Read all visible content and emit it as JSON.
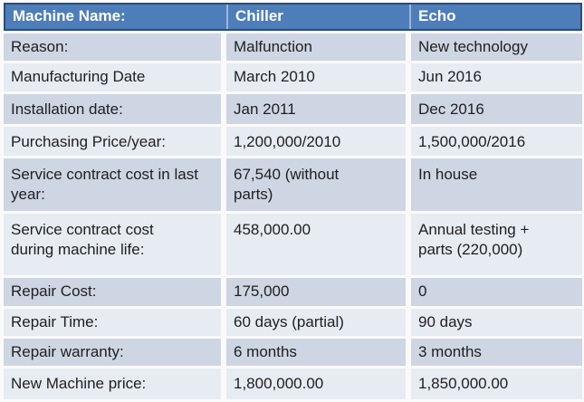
{
  "table": {
    "header": {
      "machine_label": "Machine Name:",
      "chiller": "Chiller",
      "echo": "Echo"
    },
    "rows": [
      {
        "label": "Reason:",
        "chiller": "Malfunction",
        "echo": "New technology"
      },
      {
        "label": "Manufacturing Date",
        "chiller": "March 2010",
        "echo": "Jun 2016"
      },
      {
        "label": "Installation date:",
        "chiller": "Jan 2011",
        "echo": "Dec 2016"
      },
      {
        "label": "Purchasing Price/year:",
        "chiller": "1,200,000/2010",
        "echo": "1,500,000/2016"
      },
      {
        "label": "Service contract cost in last\nyear:",
        "chiller": "67,540 (without\nparts)",
        "echo": "In house"
      },
      {
        "label": "Service contract cost\nduring machine life:",
        "chiller": "458,000.00",
        "echo": "Annual testing +\nparts (220,000)"
      },
      {
        "label": "Repair Cost:",
        "chiller": "175,000",
        "echo": "0"
      },
      {
        "label": "Repair Time:",
        "chiller": "60 days (partial)",
        "echo": "90 days"
      },
      {
        "label": "Repair warranty:",
        "chiller": "6 months",
        "echo": "3 months"
      },
      {
        "label": "New Machine price:",
        "chiller": "1,800,000.00",
        "echo": "1,850,000.00"
      }
    ]
  },
  "colors": {
    "header-bg": "#4D7EBA",
    "header-text": "#FFFFFF",
    "header-border": "#2A4C7C",
    "header-divider": "#9FB6D8",
    "band-dark": "#CED5E3",
    "band-light": "#E7EBF2",
    "text": "#212121",
    "page-bg": "#FAFAFA"
  }
}
